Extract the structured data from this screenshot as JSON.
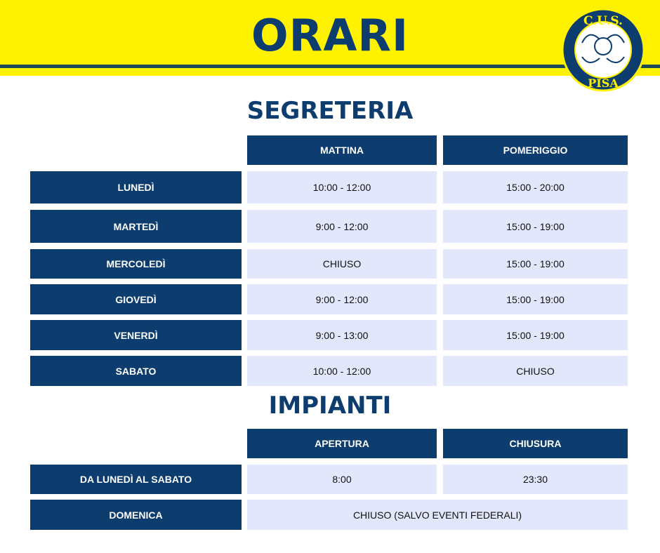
{
  "header": {
    "title": "ORARI",
    "logo_text": "C.U.S. PISA"
  },
  "segreteria": {
    "title": "SEGRETERIA",
    "columns": [
      "MATTINA",
      "POMERIGGIO"
    ],
    "rows": [
      {
        "day": "LUNEDÌ",
        "morning": "10:00 - 12:00",
        "afternoon": "15:00 - 20:00"
      },
      {
        "day": "MARTEDÌ",
        "morning": "9:00 - 12:00",
        "afternoon": "15:00 - 19:00"
      },
      {
        "day": "MERCOLEDÌ",
        "morning": "CHIUSO",
        "afternoon": "15:00 - 19:00"
      },
      {
        "day": "GIOVEDÌ",
        "morning": "9:00 - 12:00",
        "afternoon": "15:00 - 19:00"
      },
      {
        "day": "VENERDÌ",
        "morning": "9:00 - 13:00",
        "afternoon": "15:00 - 19:00"
      },
      {
        "day": "SABATO",
        "morning": "10:00 - 12:00",
        "afternoon": "CHIUSO"
      }
    ]
  },
  "impianti": {
    "title": "IMPIANTI",
    "columns": [
      "APERTURA",
      "CHIUSURA"
    ],
    "rows": [
      {
        "day": "DA LUNEDÌ AL SABATO",
        "open": "8:00",
        "close": "23:30"
      },
      {
        "day": "DOMENICA",
        "note": "CHIUSO (SALVO EVENTI FEDERALI)"
      }
    ]
  },
  "colors": {
    "yellow": "#fff200",
    "navy": "#0d3c6e",
    "light": "#e3e7fb"
  }
}
